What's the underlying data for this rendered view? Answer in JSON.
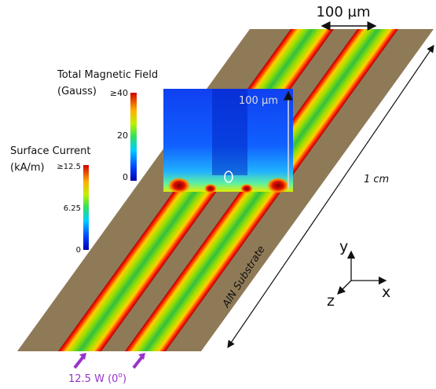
{
  "top_dimension": "100 µm",
  "magnetic_colorbar": {
    "title": "Total Magnetic Field",
    "unit": "(Gauss)",
    "ticks": [
      "≥40",
      "20",
      "0"
    ]
  },
  "current_colorbar": {
    "title": "Surface Current",
    "unit": "(kA/m)",
    "ticks": [
      "≥12.5",
      "6.25",
      "0"
    ]
  },
  "inset_scale": "100 µm",
  "length_label": "1 cm",
  "substrate_label": "AlN Substrate",
  "axes": {
    "y": "y",
    "x": "x",
    "z": "z"
  },
  "input": {
    "text": "12.5 W (0",
    "superscript": "o",
    "close": ")"
  }
}
